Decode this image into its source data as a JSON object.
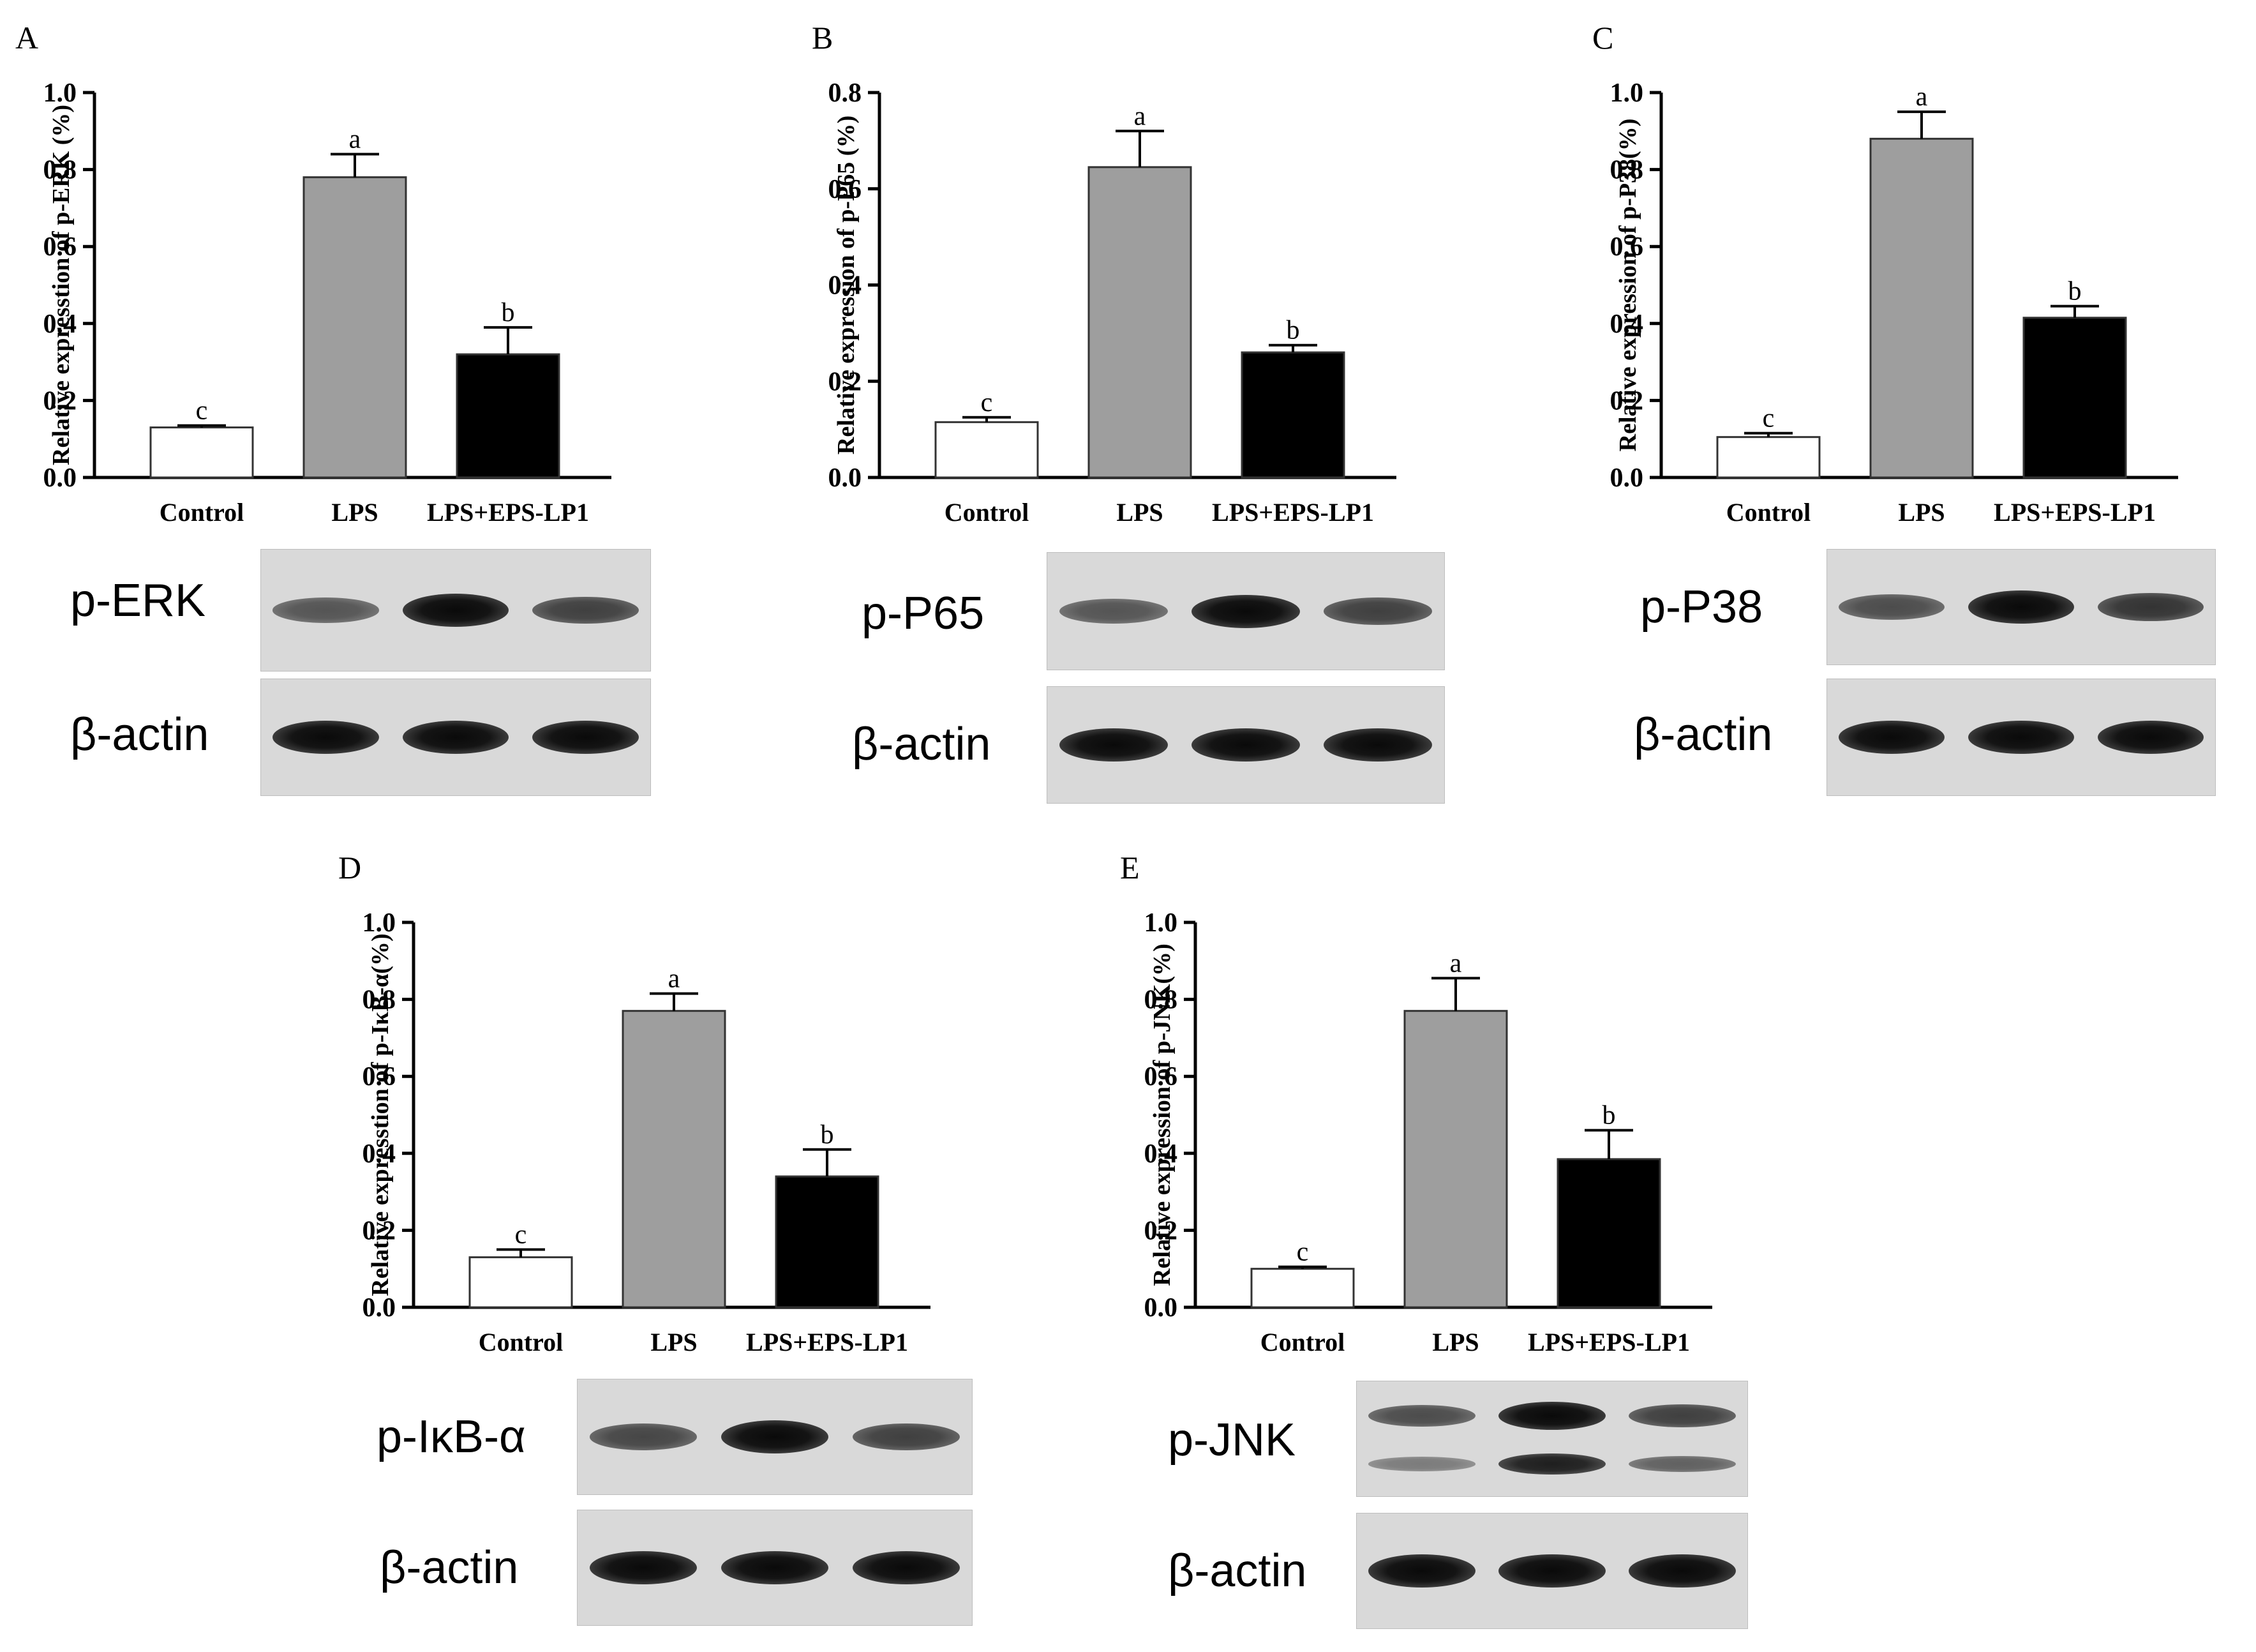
{
  "colors": {
    "control": "#ffffff",
    "lps": "#9e9e9e",
    "treatment": "#000000",
    "blot_bg": "#d9d9d9"
  },
  "chart_data": [
    {
      "panel": "A",
      "type": "bar",
      "categories": [
        "Control",
        "LPS",
        "LPS+EPS-LP1"
      ],
      "values": [
        0.13,
        0.78,
        0.32
      ],
      "errors": [
        0.005,
        0.06,
        0.07
      ],
      "letters": [
        "c",
        "a",
        "b"
      ],
      "ylabel": "Relative expresstion of p-ERK (%)",
      "ylim": [
        0,
        1.0
      ],
      "yticks": [
        "0.0",
        "0.2",
        "0.4",
        "0.6",
        "0.8",
        "1.0"
      ],
      "blots": [
        {
          "label": "p-ERK",
          "intensity": [
            0.45,
            1.0,
            0.6
          ]
        },
        {
          "label": "β-actin",
          "intensity": [
            1.0,
            1.0,
            1.0
          ]
        }
      ]
    },
    {
      "panel": "B",
      "type": "bar",
      "categories": [
        "Control",
        "LPS",
        "LPS+EPS-LP1"
      ],
      "values": [
        0.115,
        0.645,
        0.26
      ],
      "errors": [
        0.01,
        0.075,
        0.015
      ],
      "letters": [
        "c",
        "a",
        "b"
      ],
      "ylabel": "Relative expression of p-P65 (%)",
      "ylim": [
        0,
        0.8
      ],
      "yticks": [
        "0.0",
        "0.2",
        "0.4",
        "0.6",
        "0.8"
      ],
      "blots": [
        {
          "label": "p-P65",
          "intensity": [
            0.45,
            1.0,
            0.6
          ]
        },
        {
          "label": "β-actin",
          "intensity": [
            1.0,
            1.0,
            1.0
          ]
        }
      ]
    },
    {
      "panel": "C",
      "type": "bar",
      "categories": [
        "Control",
        "LPS",
        "LPS+EPS-LP1"
      ],
      "values": [
        0.105,
        0.88,
        0.415
      ],
      "errors": [
        0.01,
        0.07,
        0.03
      ],
      "letters": [
        "c",
        "a",
        "b"
      ],
      "ylabel": "Relative expression of p-P38(%)",
      "ylim": [
        0,
        1.0
      ],
      "yticks": [
        "0.0",
        "0.2",
        "0.4",
        "0.6",
        "0.8",
        "1.0"
      ],
      "blots": [
        {
          "label": "p-P38",
          "intensity": [
            0.5,
            1.0,
            0.7
          ]
        },
        {
          "label": "β-actin",
          "intensity": [
            1.0,
            1.0,
            1.0
          ]
        }
      ]
    },
    {
      "panel": "D",
      "type": "bar",
      "categories": [
        "Control",
        "LPS",
        "LPS+EPS-LP1"
      ],
      "values": [
        0.13,
        0.77,
        0.34
      ],
      "errors": [
        0.02,
        0.045,
        0.07
      ],
      "letters": [
        "c",
        "a",
        "b"
      ],
      "ylabel": "Relative expresstion of p-IκB-α(%)",
      "ylim": [
        0,
        1.0
      ],
      "yticks": [
        "0.0",
        "0.2",
        "0.4",
        "0.6",
        "0.8",
        "1.0"
      ],
      "blots": [
        {
          "label": "p-IκB-α",
          "intensity": [
            0.55,
            1.0,
            0.6
          ]
        },
        {
          "label": "β-actin",
          "intensity": [
            1.0,
            1.0,
            1.0
          ]
        }
      ]
    },
    {
      "panel": "E",
      "type": "bar",
      "categories": [
        "Control",
        "LPS",
        "LPS+EPS-LP1"
      ],
      "values": [
        0.1,
        0.77,
        0.385
      ],
      "errors": [
        0.005,
        0.085,
        0.075
      ],
      "letters": [
        "c",
        "a",
        "b"
      ],
      "ylabel": "Relative expression of p-JNK(%)",
      "ylim": [
        0,
        1.0
      ],
      "yticks": [
        "0.0",
        "0.2",
        "0.4",
        "0.6",
        "0.8",
        "1.0"
      ],
      "blots": [
        {
          "label": "p-JNK",
          "intensity": [
            0.5,
            1.0,
            0.6
          ],
          "second_band": [
            0.15,
            0.85,
            0.35
          ]
        },
        {
          "label": "β-actin",
          "intensity": [
            1.0,
            1.0,
            1.0
          ]
        }
      ]
    }
  ]
}
